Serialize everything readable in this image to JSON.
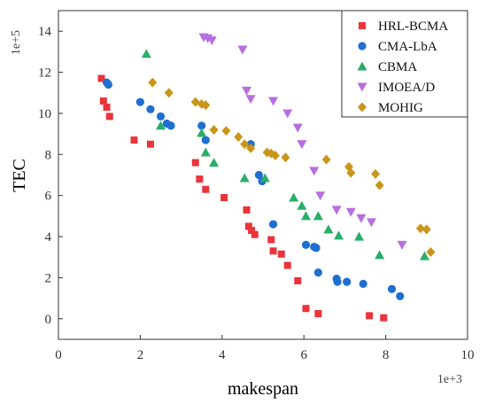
{
  "chart_data": {
    "type": "scatter",
    "xlabel": "makespan",
    "ylabel": "TEC",
    "x_multiplier_label": "1e+3",
    "y_multiplier_label": "1e+5",
    "xlim": [
      0,
      10
    ],
    "ylim": [
      -1,
      15
    ],
    "x_ticks": [
      "0",
      "2",
      "4",
      "6",
      "8",
      "10"
    ],
    "y_ticks": [
      "0",
      "2",
      "4",
      "6",
      "8",
      "10",
      "12",
      "14"
    ],
    "grid": false,
    "legend_position": "top-right",
    "series": [
      {
        "name": "HRL-BCMA",
        "marker": "square",
        "color": "#e8343a",
        "points": [
          [
            1.05,
            11.7
          ],
          [
            1.1,
            10.6
          ],
          [
            1.18,
            10.3
          ],
          [
            1.25,
            9.85
          ],
          [
            1.85,
            8.7
          ],
          [
            2.25,
            8.5
          ],
          [
            3.35,
            7.6
          ],
          [
            3.45,
            6.8
          ],
          [
            3.6,
            6.3
          ],
          [
            4.05,
            5.9
          ],
          [
            4.6,
            5.3
          ],
          [
            4.65,
            4.5
          ],
          [
            4.72,
            4.3
          ],
          [
            4.8,
            4.1
          ],
          [
            5.2,
            3.85
          ],
          [
            5.25,
            3.3
          ],
          [
            5.45,
            3.15
          ],
          [
            5.6,
            2.6
          ],
          [
            5.85,
            1.85
          ],
          [
            6.05,
            0.5
          ],
          [
            6.35,
            0.25
          ],
          [
            7.6,
            0.15
          ],
          [
            7.95,
            0.05
          ]
        ]
      },
      {
        "name": "CMA-LbA",
        "marker": "circle",
        "color": "#1f6fd1",
        "points": [
          [
            1.18,
            11.5
          ],
          [
            1.22,
            11.4
          ],
          [
            2.0,
            10.55
          ],
          [
            2.25,
            10.2
          ],
          [
            2.5,
            9.85
          ],
          [
            2.65,
            9.5
          ],
          [
            2.75,
            9.4
          ],
          [
            3.5,
            9.4
          ],
          [
            3.6,
            8.7
          ],
          [
            4.7,
            8.5
          ],
          [
            4.9,
            7.0
          ],
          [
            4.98,
            6.7
          ],
          [
            5.25,
            4.6
          ],
          [
            6.05,
            3.6
          ],
          [
            6.25,
            3.5
          ],
          [
            6.3,
            3.45
          ],
          [
            6.35,
            2.25
          ],
          [
            6.8,
            1.95
          ],
          [
            6.82,
            1.8
          ],
          [
            7.05,
            1.8
          ],
          [
            7.45,
            1.7
          ],
          [
            8.15,
            1.45
          ],
          [
            8.35,
            1.1
          ]
        ]
      },
      {
        "name": "CBMA",
        "marker": "triangle",
        "color": "#2aad6a",
        "points": [
          [
            2.15,
            12.9
          ],
          [
            2.5,
            9.4
          ],
          [
            3.5,
            9.05
          ],
          [
            3.6,
            8.1
          ],
          [
            3.8,
            7.6
          ],
          [
            4.55,
            6.85
          ],
          [
            5.05,
            6.85
          ],
          [
            5.75,
            5.9
          ],
          [
            5.95,
            5.5
          ],
          [
            6.05,
            5.0
          ],
          [
            6.35,
            5.0
          ],
          [
            6.6,
            4.35
          ],
          [
            6.85,
            4.05
          ],
          [
            7.35,
            4.0
          ],
          [
            7.85,
            3.1
          ],
          [
            8.95,
            3.05
          ]
        ]
      },
      {
        "name": "IMOEA/D",
        "marker": "triangle-down",
        "color": "#b86ee0",
        "points": [
          [
            3.55,
            13.7
          ],
          [
            3.65,
            13.65
          ],
          [
            3.75,
            13.55
          ],
          [
            4.5,
            13.1
          ],
          [
            4.6,
            11.1
          ],
          [
            4.7,
            10.7
          ],
          [
            5.25,
            10.6
          ],
          [
            5.6,
            10.0
          ],
          [
            5.85,
            9.3
          ],
          [
            5.95,
            8.5
          ],
          [
            6.25,
            7.2
          ],
          [
            6.4,
            6.0
          ],
          [
            6.8,
            5.3
          ],
          [
            7.15,
            5.2
          ],
          [
            7.4,
            4.9
          ],
          [
            7.65,
            4.7
          ],
          [
            8.4,
            3.6
          ]
        ]
      },
      {
        "name": "MOHIG",
        "marker": "diamond",
        "color": "#c9951a",
        "points": [
          [
            2.3,
            11.5
          ],
          [
            2.7,
            11.0
          ],
          [
            3.35,
            10.55
          ],
          [
            3.5,
            10.45
          ],
          [
            3.6,
            10.4
          ],
          [
            3.8,
            9.2
          ],
          [
            4.1,
            9.15
          ],
          [
            4.4,
            8.85
          ],
          [
            4.55,
            8.5
          ],
          [
            4.7,
            8.3
          ],
          [
            5.1,
            8.1
          ],
          [
            5.2,
            8.05
          ],
          [
            5.3,
            7.95
          ],
          [
            5.55,
            7.85
          ],
          [
            6.55,
            7.75
          ],
          [
            7.1,
            7.4
          ],
          [
            7.15,
            7.1
          ],
          [
            7.75,
            7.05
          ],
          [
            7.85,
            6.5
          ],
          [
            8.85,
            4.4
          ],
          [
            9.0,
            4.35
          ],
          [
            9.1,
            3.25
          ]
        ]
      }
    ]
  }
}
